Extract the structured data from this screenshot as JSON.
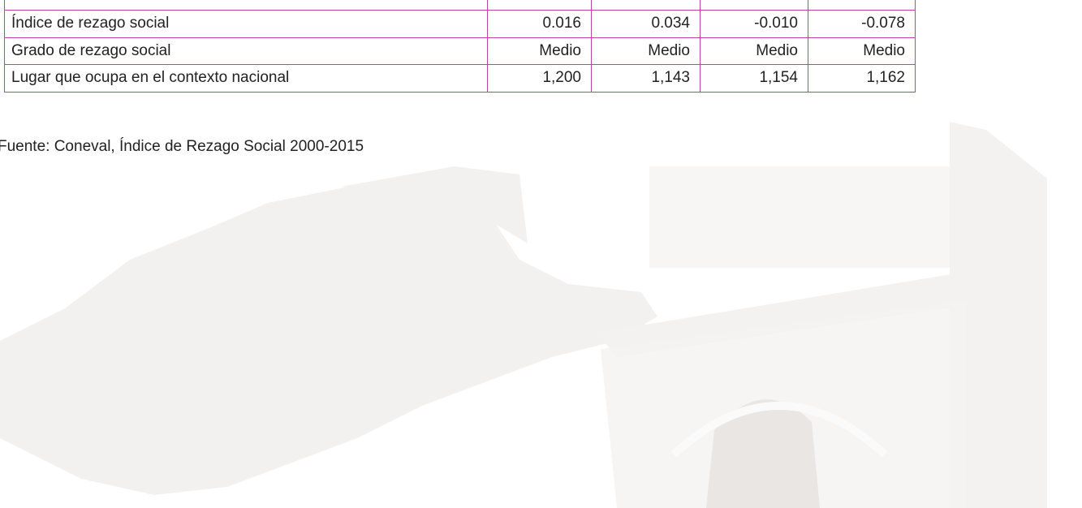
{
  "table": {
    "rows": [
      [
        "Índice de rezago social",
        "0.016",
        "0.034",
        "-0.010",
        "-0.078"
      ],
      [
        "Grado de rezago social",
        "Medio",
        "Medio",
        "Medio",
        "Medio"
      ],
      [
        "Lugar que ocupa en el contexto nacional",
        "1,200",
        "1,143",
        "1,154",
        "1,162"
      ]
    ]
  },
  "footnote": "Fuente: Coneval, Índice de Rezago Social 2000-2015"
}
